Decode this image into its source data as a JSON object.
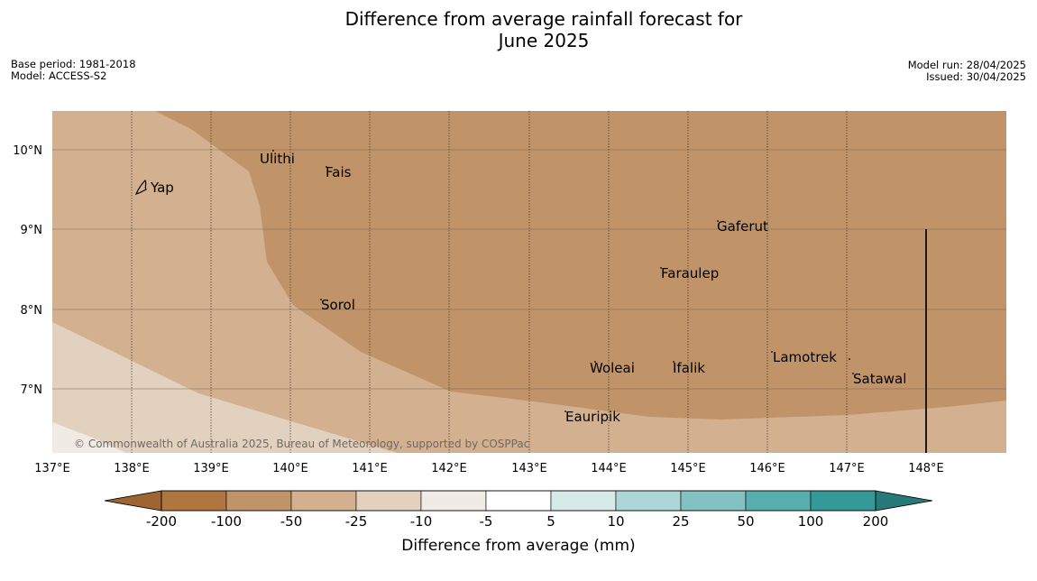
{
  "title_line1": "Difference from average rainfall forecast for",
  "title_line2": "June 2025",
  "meta_left": {
    "base_period": "Base period: 1981-2018",
    "model": "Model: ACCESS-S2"
  },
  "meta_right": {
    "model_run": "Model run: 28/04/2025",
    "issued": "Issued: 30/04/2025"
  },
  "map": {
    "lon_labels": [
      "137°E",
      "138°E",
      "139°E",
      "140°E",
      "141°E",
      "142°E",
      "143°E",
      "144°E",
      "145°E",
      "146°E",
      "147°E",
      "148°E"
    ],
    "lat_labels": [
      "10°N",
      "9°N",
      "8°N",
      "7°N"
    ],
    "places": [
      {
        "name": "Yap"
      },
      {
        "name": "Ulithi"
      },
      {
        "name": "Fais"
      },
      {
        "name": "Gaferut"
      },
      {
        "name": "Faraulep"
      },
      {
        "name": "Sorol"
      },
      {
        "name": "Woleai"
      },
      {
        "name": "Ifalik"
      },
      {
        "name": "Lamotrek"
      },
      {
        "name": "Satawal"
      },
      {
        "name": "Eauripik"
      }
    ],
    "copyright": "© Commonwealth of Australia 2025, Bureau of Meteorology, supported by COSPPac"
  },
  "colorbar": {
    "labels": [
      "-200",
      "-100",
      "-50",
      "-25",
      "-10",
      "-5",
      "5",
      "10",
      "25",
      "50",
      "100",
      "200"
    ],
    "colors": [
      "#9e6432",
      "#b07640",
      "#c09468",
      "#d2b090",
      "#e3d1c0",
      "#f1ebe5",
      "#ffffff",
      "#d5eae9",
      "#acd7d6",
      "#82c2c1",
      "#58aeac",
      "#35999a",
      "#28797a"
    ],
    "title": "Difference from average (mm)"
  },
  "legend_colors": {
    "light_tan": "#d2b090",
    "very_light_tan": "#e3d1c0",
    "medium_tan": "#c09468",
    "lightest": "#f1ebe5"
  }
}
